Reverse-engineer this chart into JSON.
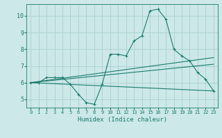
{
  "title": "",
  "xlabel": "Humidex (Indice chaleur)",
  "ylabel": "",
  "background_color": "#cce8e8",
  "line_color": "#1a7a6e",
  "grid_color": "#aacfcf",
  "xlim": [
    -0.5,
    23.5
  ],
  "ylim": [
    4.5,
    10.7
  ],
  "xticks": [
    0,
    1,
    2,
    3,
    4,
    5,
    6,
    7,
    8,
    9,
    10,
    11,
    12,
    13,
    14,
    15,
    16,
    17,
    18,
    19,
    20,
    21,
    22,
    23
  ],
  "yticks": [
    5,
    6,
    7,
    8,
    9,
    10
  ],
  "line1": {
    "x": [
      0,
      1,
      2,
      3,
      4,
      5,
      6,
      7,
      8,
      9,
      10,
      11,
      12,
      13,
      14,
      15,
      16,
      17,
      18,
      19,
      20,
      21,
      22,
      23
    ],
    "y": [
      6.0,
      6.0,
      6.3,
      6.3,
      6.3,
      5.9,
      5.3,
      4.8,
      4.7,
      5.9,
      7.7,
      7.7,
      7.6,
      8.5,
      8.8,
      10.3,
      10.4,
      9.8,
      8.0,
      7.6,
      7.3,
      6.6,
      6.2,
      5.5
    ]
  },
  "line2": {
    "x": [
      0,
      23
    ],
    "y": [
      6.0,
      7.5
    ]
  },
  "line3": {
    "x": [
      0,
      23
    ],
    "y": [
      6.0,
      7.1
    ]
  },
  "line4": {
    "x": [
      0,
      23
    ],
    "y": [
      6.0,
      5.5
    ]
  }
}
